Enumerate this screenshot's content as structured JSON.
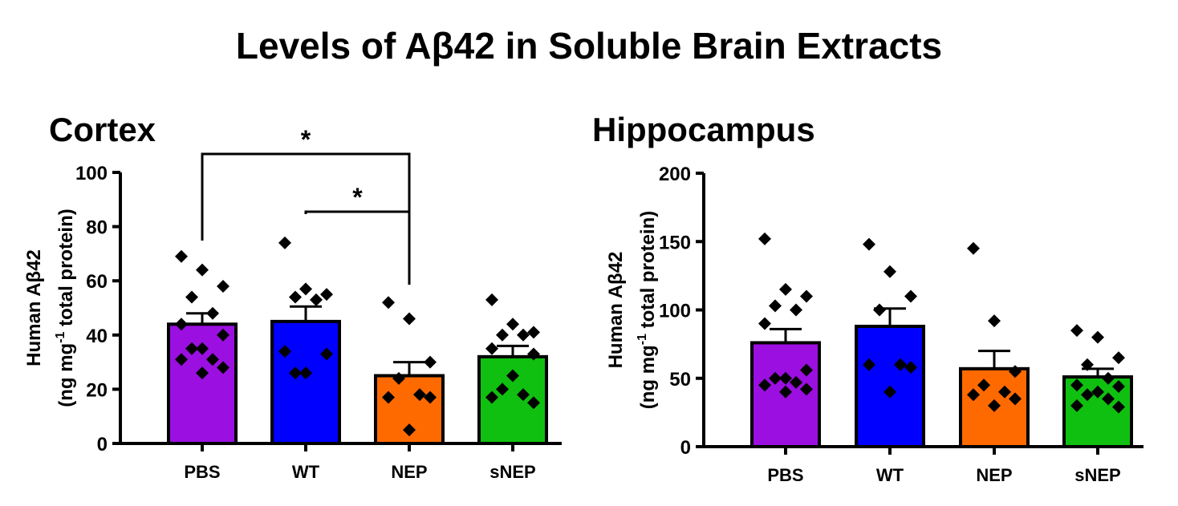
{
  "figure": {
    "title": "Levels of Aβ42 in Soluble Brain Extracts"
  },
  "panels": [
    {
      "title": "Cortex",
      "ylabel_line1": "Human Aβ42",
      "ylabel_unit_pre": "(ng mg",
      "ylabel_unit_sup": "-1",
      "ylabel_unit_post": " total protein)"
    },
    {
      "title": "Hippocampus",
      "ylabel_line1": "Human Aβ42",
      "ylabel_unit_pre": "(ng mg",
      "ylabel_unit_sup": "-1",
      "ylabel_unit_post": " total protein)"
    }
  ],
  "chart_data": [
    {
      "type": "bar",
      "title": "Cortex",
      "ylabel": "Human Aβ42 (ng mg-1 total protein)",
      "categories": [
        "PBS",
        "WT",
        "NEP",
        "sNEP"
      ],
      "colors": [
        "#9b0fe0",
        "#0000ff",
        "#ff6a00",
        "#10c010"
      ],
      "means": [
        44,
        45,
        25,
        32
      ],
      "sem": [
        4,
        5.5,
        5,
        4
      ],
      "ylim": [
        0,
        100
      ],
      "yticks": [
        0,
        20,
        40,
        60,
        80,
        100
      ],
      "points": [
        [
          69,
          64,
          58,
          54,
          48,
          44,
          40,
          35,
          35,
          31,
          31,
          28,
          26
        ],
        [
          74,
          57,
          55,
          54,
          53,
          34,
          33,
          26,
          26
        ],
        [
          52,
          46,
          30,
          24,
          18,
          17,
          17,
          5
        ],
        [
          53,
          44,
          41,
          40,
          40,
          35,
          33,
          25,
          20,
          18,
          17,
          15
        ]
      ],
      "significance": [
        {
          "from": "PBS",
          "to": "NEP",
          "label": "*"
        },
        {
          "from": "WT",
          "to": "NEP",
          "label": "*"
        }
      ]
    },
    {
      "type": "bar",
      "title": "Hippocampus",
      "ylabel": "Human Aβ42 (ng mg-1 total protein)",
      "categories": [
        "PBS",
        "WT",
        "NEP",
        "sNEP"
      ],
      "colors": [
        "#9b0fe0",
        "#0000ff",
        "#ff6a00",
        "#10c010"
      ],
      "means": [
        76,
        88,
        57,
        51
      ],
      "sem": [
        10,
        13,
        13,
        6
      ],
      "ylim": [
        0,
        200
      ],
      "yticks": [
        0,
        50,
        100,
        150,
        200
      ],
      "points": [
        [
          152,
          115,
          110,
          103,
          100,
          90,
          56,
          50,
          50,
          47,
          45,
          42,
          40
        ],
        [
          148,
          128,
          110,
          100,
          60,
          60,
          58,
          40
        ],
        [
          145,
          92,
          55,
          45,
          40,
          38,
          35,
          30
        ],
        [
          85,
          80,
          65,
          60,
          50,
          45,
          44,
          40,
          38,
          35,
          30,
          29
        ]
      ],
      "significance": []
    }
  ]
}
